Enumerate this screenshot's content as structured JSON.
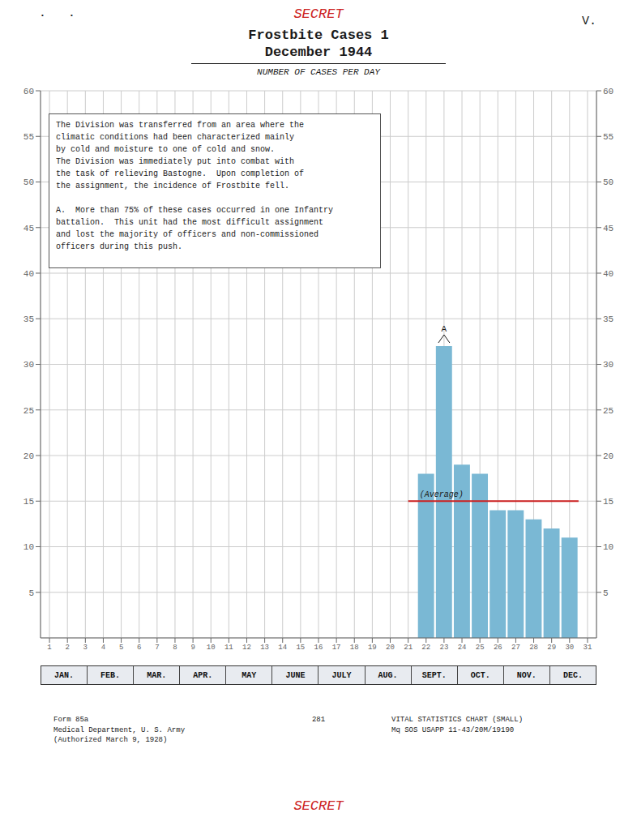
{
  "chart_data": {
    "type": "bar",
    "stamp_top": "SECRET",
    "stamp_bottom": "SECRET",
    "stamp_color": "#cc2222",
    "corner_marks": [
      "•",
      "•"
    ],
    "page_number": "V.",
    "title": "Frostbite Cases 1",
    "subtitle": "December 1944",
    "y_label": "NUMBER OF CASES PER DAY",
    "x": [
      1,
      2,
      3,
      4,
      5,
      6,
      7,
      8,
      9,
      10,
      11,
      12,
      13,
      14,
      15,
      16,
      17,
      18,
      19,
      20,
      21,
      22,
      23,
      24,
      25,
      26,
      27,
      28,
      29,
      30,
      31
    ],
    "values": [
      0,
      0,
      0,
      0,
      0,
      0,
      0,
      0,
      0,
      0,
      0,
      0,
      0,
      0,
      0,
      0,
      0,
      0,
      0,
      0,
      0,
      18,
      32,
      19,
      18,
      14,
      14,
      13,
      12,
      11,
      0
    ],
    "color": "#7ab8d4",
    "xlim": [
      0.5,
      31.5
    ],
    "xticks": [
      1,
      2,
      3,
      4,
      5,
      6,
      7,
      8,
      9,
      10,
      11,
      12,
      13,
      14,
      15,
      16,
      17,
      18,
      19,
      20,
      21,
      22,
      23,
      24,
      25,
      26,
      27,
      28,
      29,
      30,
      31
    ],
    "ylim": [
      0,
      60
    ],
    "yticks": [
      5,
      10,
      15,
      20,
      25,
      30,
      35,
      40,
      45,
      50,
      55,
      60
    ],
    "y2lim": [
      0,
      60
    ],
    "y2ticks": [
      5,
      10,
      15,
      20,
      25,
      30,
      35,
      40,
      45,
      50,
      55,
      60
    ],
    "grid": true,
    "average": {
      "value": 15.0,
      "from": 21,
      "to": 30.5,
      "label": "(Average)",
      "color": "#cc2222"
    },
    "peak_label": {
      "text": "A",
      "x": 23,
      "y": 32
    },
    "annotation": "The Division was transferred from an area where the\nclimatic conditions had been characterized mainly\nby cold and moisture to one of cold and snow.\nThe Division was immediately put into combat with\nthe task of relieving Bastogne.  Upon completion of\nthe assignment, the incidence of Frostbite fell.\n\nA.  More than 75% of these cases occurred in one Infantry\nbattalion.  This unit had the most difficult assignment\nand lost the majority of officers and non-commissioned\nofficers during this push.",
    "months": [
      "JAN.",
      "FEB.",
      "MAR.",
      "APR.",
      "MAY",
      "JUNE",
      "JULY",
      "AUG.",
      "SEPT.",
      "OCT.",
      "NOV.",
      "DEC."
    ],
    "form_text": {
      "left": "Form 85a\nMedical Department, U. S. Army\n(Authorized March 9, 1928)",
      "center": "281",
      "right": "VITAL STATISTICS CHART (SMALL)\nMq SOS USAPP 11-43/20M/19190"
    }
  }
}
